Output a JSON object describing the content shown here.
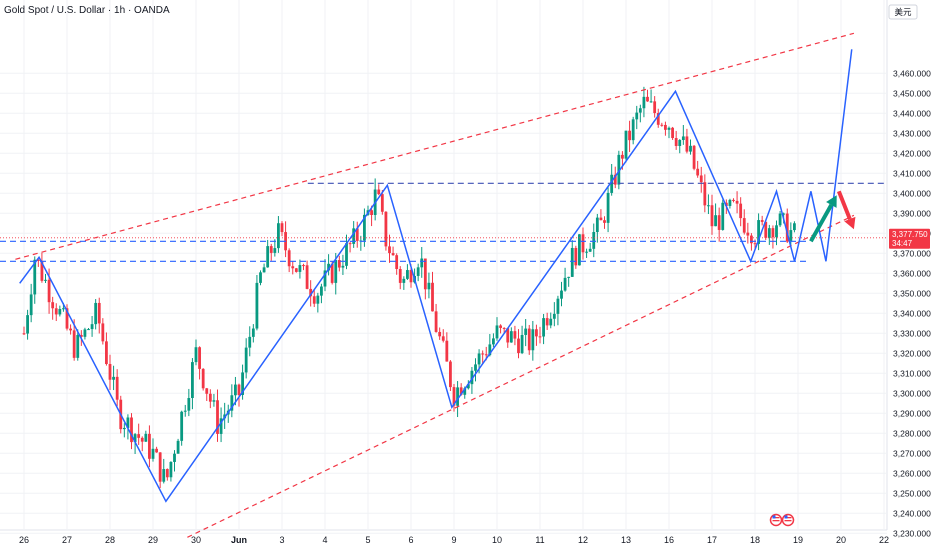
{
  "header": {
    "title": "Gold Spot / U.S. Dollar · 1h · OANDA"
  },
  "currency_label": "美元",
  "price_tag": {
    "price": "3,377.750",
    "countdown": "34:47"
  },
  "colors": {
    "up": "#089981",
    "down": "#f23645",
    "pattern": "#2962ff",
    "channel": "#f23645",
    "level": "#2962ff",
    "tag": "#f23645"
  },
  "chart_data": {
    "type": "candlestick",
    "title": "Gold Spot / U.S. Dollar · 1h · OANDA",
    "x_ticks": [
      "26",
      "27",
      "28",
      "29",
      "30",
      "Jun",
      "3",
      "4",
      "5",
      "6",
      "9",
      "10",
      "11",
      "12",
      "13",
      "16",
      "17",
      "18",
      "19",
      "20",
      "22"
    ],
    "y_ticks": [
      3230,
      3240,
      3250,
      3260,
      3270,
      3280,
      3290,
      3300,
      3310,
      3320,
      3330,
      3340,
      3350,
      3360,
      3370,
      3380,
      3390,
      3400,
      3410,
      3420,
      3430,
      3440,
      3450,
      3460
    ],
    "ylim": [
      3225,
      3478
    ],
    "last_price": 3377.75,
    "price_path": [
      {
        "t": 0,
        "p": 3330
      },
      {
        "t": 0.25,
        "p": 3368
      },
      {
        "t": 1.2,
        "p": 3322
      },
      {
        "t": 1.7,
        "p": 3340
      },
      {
        "t": 2.2,
        "p": 3290
      },
      {
        "t": 3.0,
        "p": 3270
      },
      {
        "t": 3.3,
        "p": 3255
      },
      {
        "t": 4.0,
        "p": 3320
      },
      {
        "t": 4.5,
        "p": 3285
      },
      {
        "t": 5.0,
        "p": 3300
      },
      {
        "t": 5.5,
        "p": 3358
      },
      {
        "t": 5.9,
        "p": 3380
      },
      {
        "t": 6.3,
        "p": 3364
      },
      {
        "t": 6.8,
        "p": 3350
      },
      {
        "t": 7.3,
        "p": 3365
      },
      {
        "t": 7.8,
        "p": 3380
      },
      {
        "t": 8.2,
        "p": 3400
      },
      {
        "t": 8.4,
        "p": 3378
      },
      {
        "t": 8.8,
        "p": 3355
      },
      {
        "t": 9.2,
        "p": 3370
      },
      {
        "t": 9.5,
        "p": 3340
      },
      {
        "t": 10.0,
        "p": 3300
      },
      {
        "t": 10.5,
        "p": 3315
      },
      {
        "t": 11.0,
        "p": 3330
      },
      {
        "t": 11.8,
        "p": 3325
      },
      {
        "t": 12.3,
        "p": 3345
      },
      {
        "t": 12.8,
        "p": 3370
      },
      {
        "t": 13.4,
        "p": 3383
      },
      {
        "t": 13.9,
        "p": 3420
      },
      {
        "t": 14.4,
        "p": 3445
      },
      {
        "t": 15.0,
        "p": 3435
      },
      {
        "t": 15.5,
        "p": 3418
      },
      {
        "t": 16.0,
        "p": 3385
      },
      {
        "t": 16.5,
        "p": 3392
      },
      {
        "t": 17.0,
        "p": 3380
      },
      {
        "t": 17.5,
        "p": 3386
      },
      {
        "t": 18.0,
        "p": 3377.75
      }
    ],
    "drawings": {
      "zigzag": [
        [
          -0.1,
          3355
        ],
        [
          0.35,
          3368
        ],
        [
          3.3,
          3246
        ],
        [
          8.45,
          3404
        ],
        [
          9.95,
          3293
        ],
        [
          15.15,
          3451
        ],
        [
          16.9,
          3366
        ],
        [
          17.5,
          3401
        ],
        [
          17.92,
          3366
        ],
        [
          18.3,
          3401
        ],
        [
          18.65,
          3366
        ],
        [
          19.25,
          3472
        ]
      ],
      "channel_upper": [
        [
          -0.2,
          3367
        ],
        [
          19.3,
          3480
        ]
      ],
      "channel_lower": [
        [
          3.8,
          3228
        ],
        [
          19.3,
          3389
        ]
      ],
      "resistance": 3405,
      "support_levels": [
        3376,
        3366
      ],
      "arrow_up": [
        [
          18.3,
          3376
        ],
        [
          18.9,
          3399
        ]
      ],
      "arrow_down": [
        [
          18.95,
          3401
        ],
        [
          19.3,
          3382
        ]
      ]
    }
  }
}
